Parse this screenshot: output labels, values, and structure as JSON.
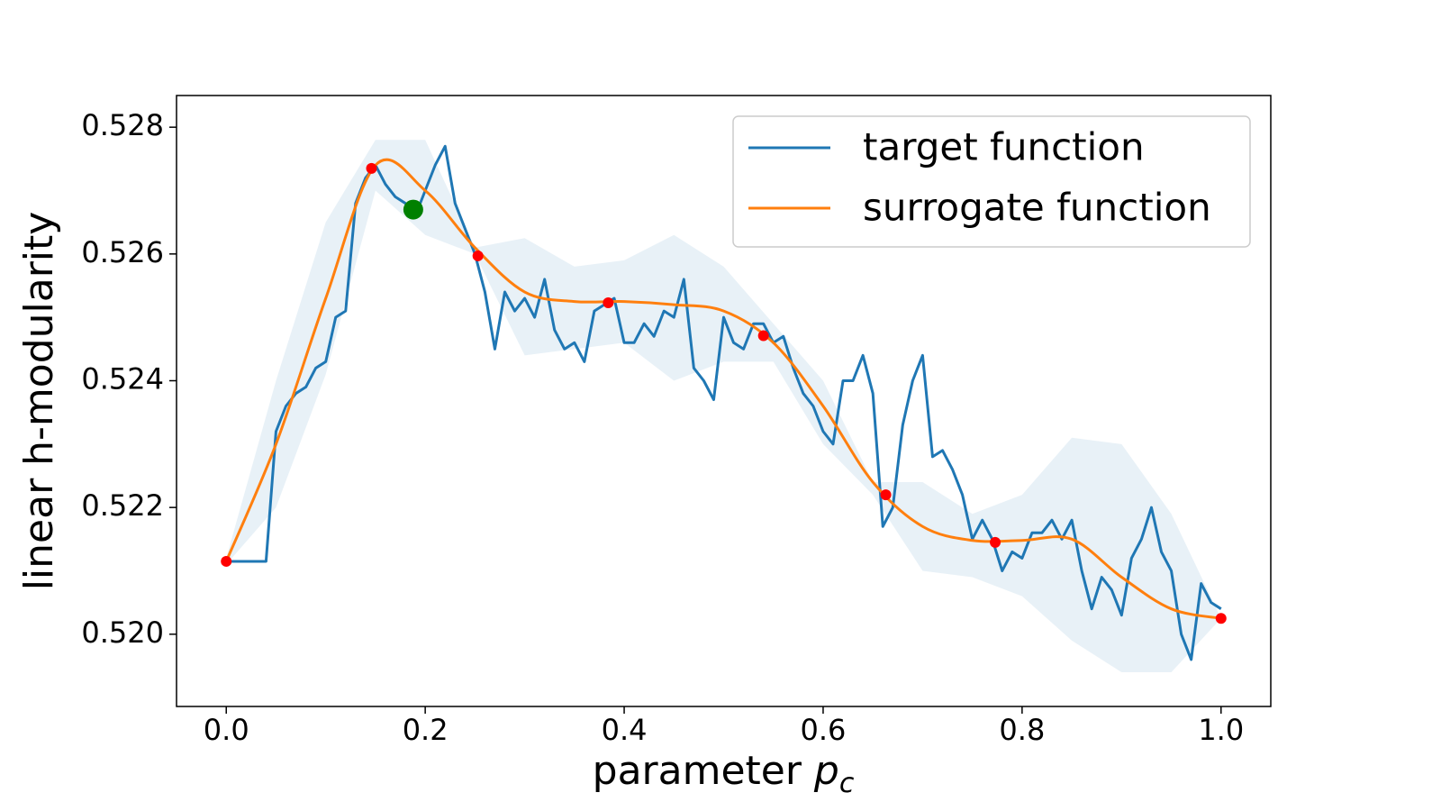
{
  "chart_data": {
    "type": "line",
    "xlabel": {
      "text": "parameter ",
      "symbol": "p",
      "subscript": "c"
    },
    "ylabel": "linear h-modularity",
    "xlim": [
      -0.05,
      1.05
    ],
    "ylim": [
      0.51886,
      0.5285
    ],
    "xticks": [
      {
        "value": 0,
        "label": "0.0"
      },
      0.2,
      0.4,
      0.6,
      0.8,
      {
        "value": 1,
        "label": "1.0"
      }
    ],
    "yticks": [
      {
        "value": 0.52,
        "label": "0.520"
      },
      0.522,
      0.524,
      0.526,
      0.528
    ],
    "legend": "upper right",
    "series": [
      {
        "name": "target function",
        "color": "#1f77b4",
        "x": [
          0,
          0.01,
          0.02,
          0.03,
          0.04,
          0.05,
          0.06,
          0.07,
          0.08,
          0.09,
          0.1,
          0.11,
          0.12,
          0.13,
          0.14,
          0.15,
          0.16,
          0.17,
          0.18,
          0.19,
          0.2,
          0.21,
          0.22,
          0.23,
          0.24,
          0.25,
          0.26,
          0.27,
          0.28,
          0.29,
          0.3,
          0.31,
          0.32,
          0.33,
          0.34,
          0.35,
          0.36,
          0.37,
          0.38,
          0.39,
          0.4,
          0.41,
          0.42,
          0.43,
          0.44,
          0.45,
          0.46,
          0.47,
          0.48,
          0.49,
          0.5,
          0.51,
          0.52,
          0.53,
          0.54,
          0.55,
          0.56,
          0.57,
          0.58,
          0.59,
          0.6,
          0.61,
          0.62,
          0.63,
          0.64,
          0.65,
          0.66,
          0.67,
          0.68,
          0.69,
          0.7,
          0.71,
          0.72,
          0.73,
          0.74,
          0.75,
          0.76,
          0.77,
          0.78,
          0.79,
          0.8,
          0.81,
          0.82,
          0.83,
          0.84,
          0.85,
          0.86,
          0.87,
          0.88,
          0.89,
          0.9,
          0.91,
          0.92,
          0.93,
          0.94,
          0.95,
          0.96,
          0.97,
          0.98,
          0.99,
          1
        ],
        "values": [
          0.52115,
          0.52115,
          0.52115,
          0.52115,
          0.52115,
          0.5232,
          0.5236,
          0.5238,
          0.5239,
          0.5242,
          0.5243,
          0.525,
          0.5251,
          0.5268,
          0.5272,
          0.5274,
          0.5271,
          0.5269,
          0.5268,
          0.5266,
          0.527,
          0.5274,
          0.5277,
          0.5268,
          0.5264,
          0.526,
          0.5254,
          0.5245,
          0.5254,
          0.5251,
          0.5253,
          0.525,
          0.5256,
          0.5248,
          0.5245,
          0.5246,
          0.5243,
          0.5251,
          0.5252,
          0.5253,
          0.5246,
          0.5246,
          0.5249,
          0.5247,
          0.5251,
          0.525,
          0.5256,
          0.5242,
          0.524,
          0.5237,
          0.525,
          0.5246,
          0.5245,
          0.5249,
          0.5249,
          0.5246,
          0.5247,
          0.5242,
          0.5238,
          0.5236,
          0.5232,
          0.523,
          0.524,
          0.524,
          0.5244,
          0.5238,
          0.5217,
          0.522,
          0.5233,
          0.524,
          0.5244,
          0.5228,
          0.5229,
          0.5226,
          0.5222,
          0.5215,
          0.5218,
          0.5215,
          0.521,
          0.5213,
          0.5212,
          0.5216,
          0.5216,
          0.5218,
          0.5215,
          0.5218,
          0.521,
          0.5204,
          0.5209,
          0.5207,
          0.5203,
          0.5212,
          0.5215,
          0.522,
          0.5213,
          0.521,
          0.52,
          0.5196,
          0.5208,
          0.5205,
          0.5204
        ]
      },
      {
        "name": "surrogate function",
        "color": "#ff7f0e",
        "x": [
          0,
          0.05,
          0.1,
          0.15,
          0.2,
          0.25,
          0.3,
          0.35,
          0.4,
          0.45,
          0.5,
          0.55,
          0.6,
          0.65,
          0.7,
          0.75,
          0.8,
          0.85,
          0.9,
          0.95,
          1
        ],
        "values": [
          0.52115,
          0.523,
          0.5253,
          0.5274,
          0.527,
          0.5261,
          0.5254,
          0.52525,
          0.52525,
          0.5252,
          0.5251,
          0.5246,
          0.5236,
          0.5224,
          0.5217,
          0.52148,
          0.52148,
          0.5215,
          0.5209,
          0.5204,
          0.52025
        ]
      }
    ],
    "band": {
      "color": "#1f77b4",
      "x": [
        0,
        0.05,
        0.1,
        0.15,
        0.2,
        0.25,
        0.3,
        0.35,
        0.4,
        0.45,
        0.5,
        0.55,
        0.6,
        0.65,
        0.7,
        0.75,
        0.8,
        0.85,
        0.9,
        0.95,
        1
      ],
      "lower": [
        0.5211,
        0.522,
        0.5241,
        0.527,
        0.5263,
        0.526,
        0.5244,
        0.5245,
        0.5246,
        0.524,
        0.5243,
        0.5243,
        0.523,
        0.5222,
        0.521,
        0.5209,
        0.5206,
        0.5199,
        0.5194,
        0.5194,
        0.52025
      ],
      "upper": [
        0.5212,
        0.524,
        0.5265,
        0.5278,
        0.5278,
        0.5261,
        0.52625,
        0.5258,
        0.5259,
        0.5263,
        0.5258,
        0.5249,
        0.524,
        0.5224,
        0.5224,
        0.5219,
        0.5222,
        0.5231,
        0.523,
        0.5219,
        0.52025
      ]
    },
    "observations": {
      "color": "#ff0000",
      "x": [
        0,
        0.146,
        0.253,
        0.384,
        0.54,
        0.663,
        0.773,
        1
      ],
      "values": [
        0.52115,
        0.52735,
        0.52597,
        0.52523,
        0.52471,
        0.5222,
        0.52145,
        0.52025
      ]
    },
    "best": {
      "color": "#008000",
      "x": [
        0.188
      ],
      "values": [
        0.5267
      ]
    }
  }
}
